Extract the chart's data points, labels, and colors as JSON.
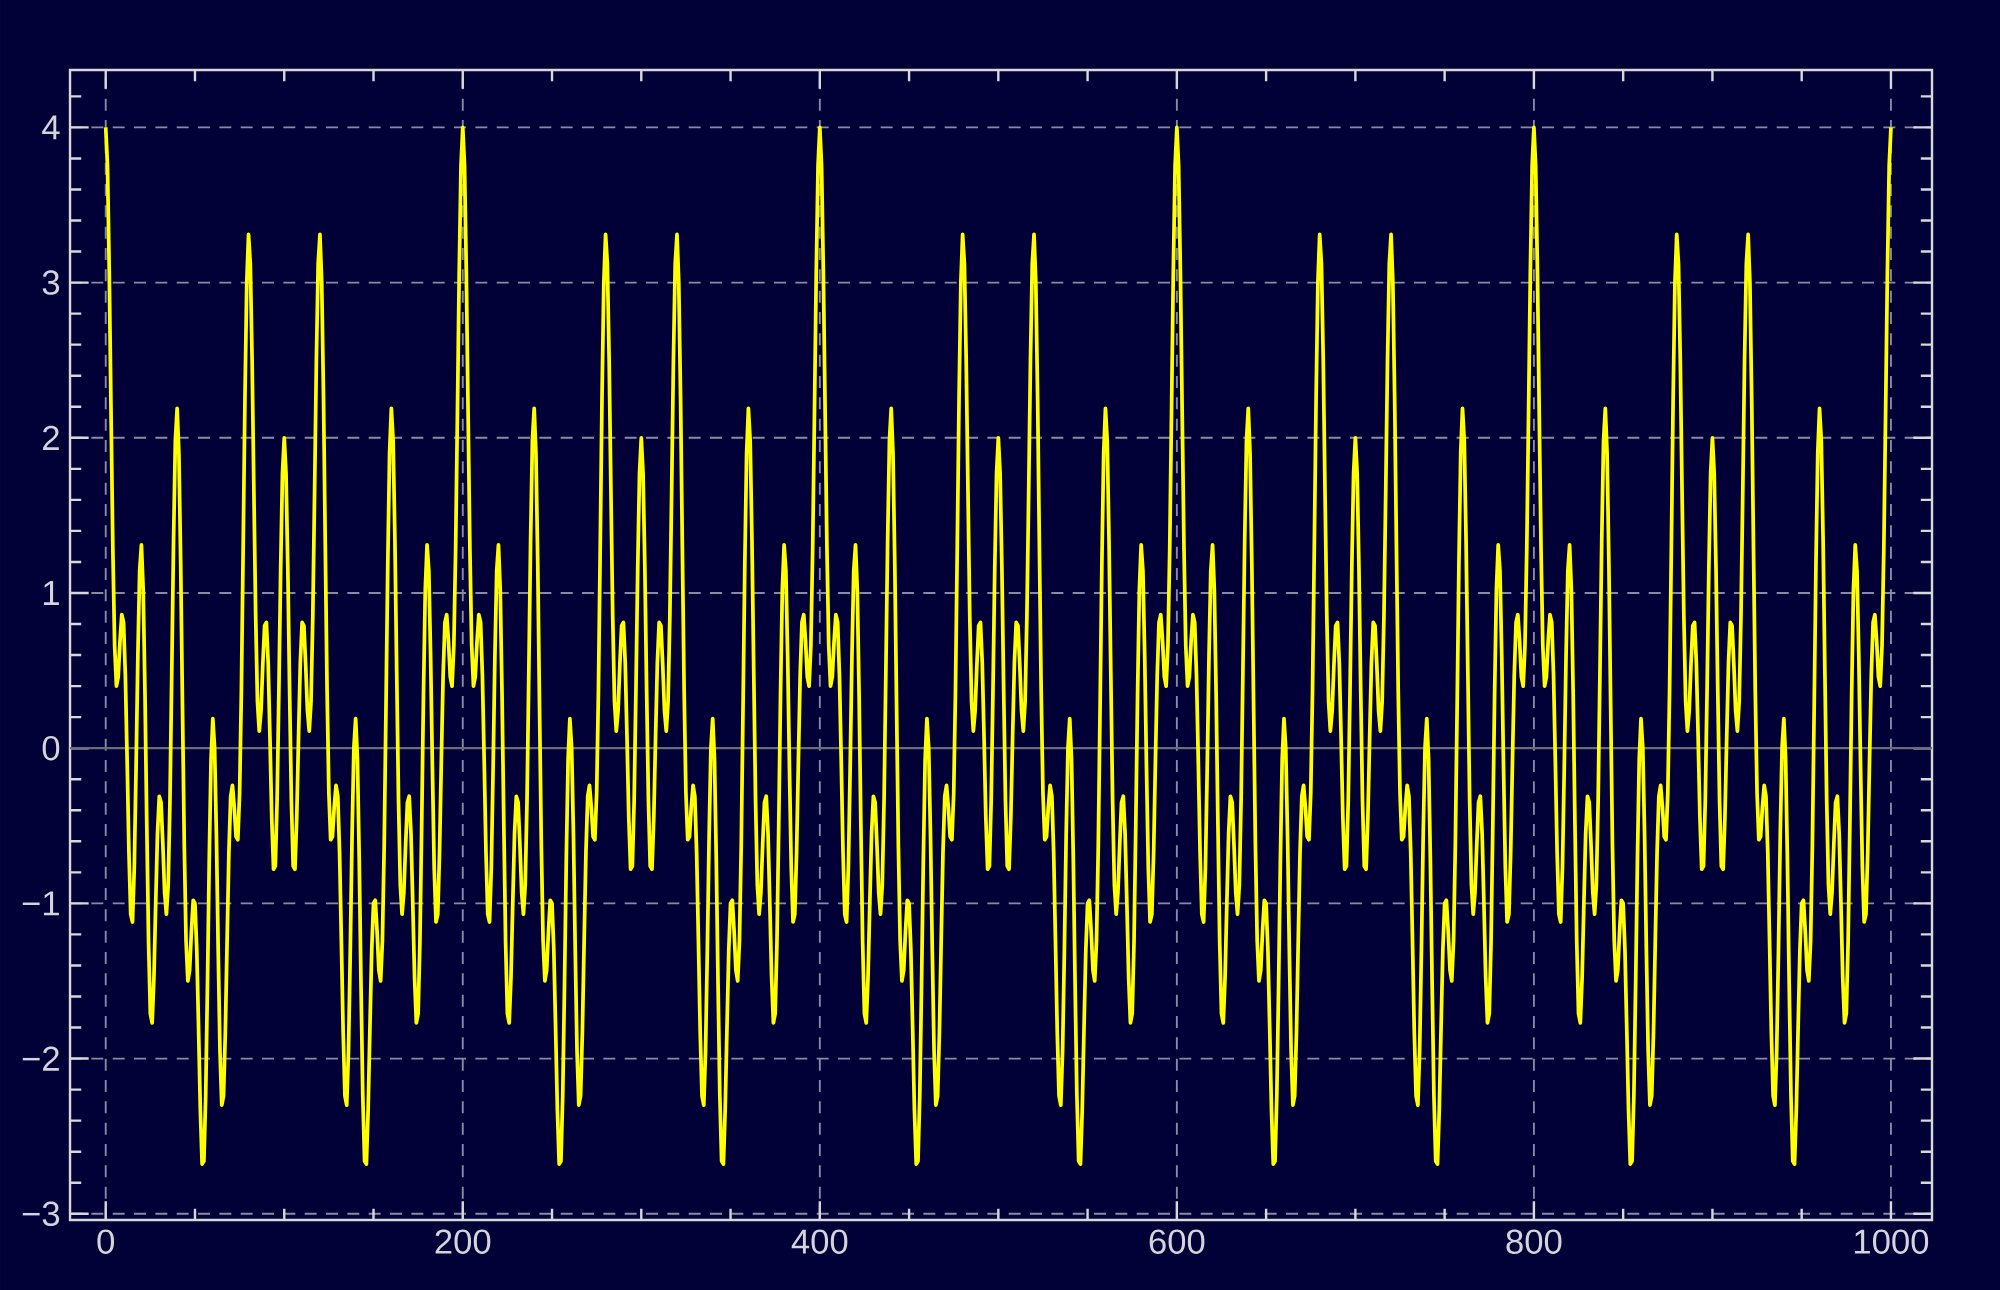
{
  "chart_data": {
    "type": "line",
    "color": "#ffff00",
    "line_style": "solid",
    "grid": true,
    "xlim": [
      -20,
      1023
    ],
    "ylim": [
      -3.04,
      4.37
    ],
    "xticks": [
      0,
      {
        "value": 50,
        "label": null
      },
      {
        "value": 100,
        "label": null
      },
      {
        "value": 150,
        "label": null
      },
      200,
      {
        "value": 250,
        "label": null
      },
      {
        "value": 300,
        "label": null
      },
      {
        "value": 350,
        "label": null
      },
      400,
      {
        "value": 450,
        "label": null
      },
      {
        "value": 500,
        "label": null
      },
      {
        "value": 550,
        "label": null
      },
      600,
      {
        "value": 650,
        "label": null
      },
      {
        "value": 700,
        "label": null
      },
      {
        "value": 750,
        "label": null
      },
      800,
      {
        "value": 850,
        "label": null
      },
      {
        "value": 900,
        "label": null
      },
      {
        "value": 950,
        "label": null
      },
      1000
    ],
    "yticks": [
      {
        "value": -3,
        "label": "−3"
      },
      {
        "value": -2.8,
        "label": null
      },
      {
        "value": -2.6,
        "label": null
      },
      {
        "value": -2.4,
        "label": null
      },
      {
        "value": -2.2,
        "label": null
      },
      {
        "value": -2,
        "label": "−2"
      },
      {
        "value": -1.8,
        "label": null
      },
      {
        "value": -1.6,
        "label": null
      },
      {
        "value": -1.4,
        "label": null
      },
      {
        "value": -1.2,
        "label": null
      },
      {
        "value": -1,
        "label": "−1"
      },
      {
        "value": -0.8,
        "label": null
      },
      {
        "value": -0.6,
        "label": null
      },
      {
        "value": -0.4,
        "label": null
      },
      {
        "value": -0.2,
        "label": null
      },
      0,
      {
        "value": 0.2,
        "label": null
      },
      {
        "value": 0.4,
        "label": null
      },
      {
        "value": 0.6,
        "label": null
      },
      {
        "value": 0.8,
        "label": null
      },
      1,
      {
        "value": 1.2,
        "label": null
      },
      {
        "value": 1.4,
        "label": null
      },
      {
        "value": 1.6,
        "label": null
      },
      {
        "value": 1.8,
        "label": null
      },
      2,
      {
        "value": 2.2,
        "label": null
      },
      {
        "value": 2.4,
        "label": null
      },
      {
        "value": 2.6,
        "label": null
      },
      {
        "value": 2.8,
        "label": null
      },
      3,
      {
        "value": 3.2,
        "label": null
      },
      {
        "value": 3.4,
        "label": null
      },
      {
        "value": 3.6,
        "label": null
      },
      {
        "value": 3.8,
        "label": null
      },
      4,
      {
        "value": 4.2,
        "label": null
      }
    ],
    "ref_lines": [
      {
        "axis": "y",
        "value": 0,
        "color": "#6b6b78",
        "line_style": "solid"
      }
    ],
    "x": [
      0,
      1,
      2,
      3,
      4,
      5,
      6,
      7,
      8,
      9,
      10,
      11,
      12,
      13,
      14,
      15,
      16,
      17,
      18,
      19,
      20,
      21,
      22,
      23,
      24,
      25,
      26,
      27,
      28,
      29,
      30,
      31,
      32,
      33,
      34,
      35,
      36,
      37,
      38,
      39,
      40,
      41,
      42,
      43,
      44,
      45,
      46,
      47,
      48,
      49,
      50,
      51,
      52,
      53,
      54,
      55,
      56,
      57,
      58,
      59,
      60,
      61,
      62,
      63,
      64,
      65,
      66,
      67,
      68,
      69,
      70,
      71,
      72,
      73,
      74,
      75,
      76,
      77,
      78,
      79,
      80,
      81,
      82,
      83,
      84,
      85,
      86,
      87,
      88,
      89,
      90,
      91,
      92,
      93,
      94,
      95,
      96,
      97,
      98,
      99,
      100,
      101,
      102,
      103,
      104,
      105,
      106,
      107,
      108,
      109,
      110,
      111,
      112,
      113,
      114,
      115,
      116,
      117,
      118,
      119,
      120,
      121,
      122,
      123,
      124,
      125,
      126,
      127,
      128,
      129,
      130,
      131,
      132,
      133,
      134,
      135,
      136,
      137,
      138,
      139,
      140,
      141,
      142,
      143,
      144,
      145,
      146,
      147,
      148,
      149,
      150,
      151,
      152,
      153,
      154,
      155,
      156,
      157,
      158,
      159,
      160,
      161,
      162,
      163,
      164,
      165,
      166,
      167,
      168,
      169,
      170,
      171,
      172,
      173,
      174,
      175,
      176,
      177,
      178,
      179,
      180,
      181,
      182,
      183,
      184,
      185,
      186,
      187,
      188,
      189,
      190,
      191,
      192,
      193,
      194,
      195,
      196,
      197,
      198,
      199,
      200,
      201,
      202,
      203,
      204,
      205,
      206,
      207,
      208,
      209,
      210,
      211,
      212,
      213,
      214,
      215,
      216,
      217,
      218,
      219,
      220,
      221,
      222,
      223,
      224,
      225,
      226,
      227,
      228,
      229,
      230,
      231,
      232,
      233,
      234,
      235,
      236,
      237,
      238,
      239,
      240,
      241,
      242,
      243,
      244,
      245,
      246,
      247,
      248,
      249,
      250,
      251,
      252,
      253,
      254,
      255,
      256,
      257,
      258,
      259,
      260,
      261,
      262,
      263,
      264,
      265,
      266,
      267,
      268,
      269,
      270,
      271,
      272,
      273,
      274,
      275,
      276,
      277,
      278,
      279,
      280,
      281,
      282,
      283,
      284,
      285,
      286,
      287,
      288,
      289,
      290,
      291,
      292,
      293,
      294,
      295,
      296,
      297,
      298,
      299,
      300,
      301,
      302,
      303,
      304,
      305,
      306,
      307,
      308,
      309,
      310,
      311,
      312,
      313,
      314,
      315,
      316,
      317,
      318,
      319,
      320,
      321,
      322,
      323,
      324,
      325,
      326,
      327,
      328,
      329,
      330,
      331,
      332,
      333,
      334,
      335,
      336,
      337,
      338,
      339,
      340,
      341,
      342,
      343,
      344,
      345,
      346,
      347,
      348,
      349,
      350,
      351,
      352,
      353,
      354,
      355,
      356,
      357,
      358,
      359,
      360,
      361,
      362,
      363,
      364,
      365,
      366,
      367,
      368,
      369,
      370,
      371,
      372,
      373,
      374,
      375,
      376,
      377,
      378,
      379,
      380,
      381,
      382,
      383,
      384,
      385,
      386,
      387,
      388,
      389,
      390,
      391,
      392,
      393,
      394,
      395,
      396,
      397,
      398,
      399,
      400,
      401,
      402,
      403,
      404,
      405,
      406,
      407,
      408,
      409,
      410,
      411,
      412,
      413,
      414,
      415,
      416,
      417,
      418,
      419,
      420,
      421,
      422,
      423,
      424,
      425,
      426,
      427,
      428,
      429,
      430,
      431,
      432,
      433,
      434,
      435,
      436,
      437,
      438,
      439,
      440,
      441,
      442,
      443,
      444,
      445,
      446,
      447,
      448,
      449,
      450,
      451,
      452,
      453,
      454,
      455,
      456,
      457,
      458,
      459,
      460,
      461,
      462,
      463,
      464,
      465,
      466,
      467,
      468,
      469,
      470,
      471,
      472,
      473,
      474,
      475,
      476,
      477,
      478,
      479,
      480,
      481,
      482,
      483,
      484,
      485,
      486,
      487,
      488,
      489,
      490,
      491,
      492,
      493,
      494,
      495,
      496,
      497,
      498,
      499,
      500,
      501,
      502,
      503,
      504,
      505,
      506,
      507,
      508,
      509,
      510,
      511,
      512,
      513,
      514,
      515,
      516,
      517,
      518,
      519,
      520,
      521,
      522,
      523,
      524,
      525,
      526,
      527,
      528,
      529,
      530,
      531,
      532,
      533,
      534,
      535,
      536,
      537,
      538,
      539,
      540,
      541,
      542,
      543,
      544,
      545,
      546,
      547,
      548,
      549,
      550,
      551,
      552,
      553,
      554,
      555,
      556,
      557,
      558,
      559,
      560,
      561,
      562,
      563,
      564,
      565,
      566,
      567,
      568,
      569,
      570,
      571,
      572,
      573,
      574,
      575,
      576,
      577,
      578,
      579,
      580,
      581,
      582,
      583,
      584,
      585,
      586,
      587,
      588,
      589,
      590,
      591,
      592,
      593,
      594,
      595,
      596,
      597,
      598,
      599,
      600,
      601,
      602,
      603,
      604,
      605,
      606,
      607,
      608,
      609,
      610,
      611,
      612,
      613,
      614,
      615,
      616,
      617,
      618,
      619,
      620,
      621,
      622,
      623,
      624,
      625,
      626,
      627,
      628,
      629,
      630,
      631,
      632,
      633,
      634,
      635,
      636,
      637,
      638,
      639,
      640,
      641,
      642,
      643,
      644,
      645,
      646,
      647,
      648,
      649,
      650,
      651,
      652,
      653,
      654,
      655,
      656,
      657,
      658,
      659,
      660,
      661,
      662,
      663,
      664,
      665,
      666,
      667,
      668,
      669,
      670,
      671,
      672,
      673,
      674,
      675,
      676,
      677,
      678,
      679,
      680,
      681,
      682,
      683,
      684,
      685,
      686,
      687,
      688,
      689,
      690,
      691,
      692,
      693,
      694,
      695,
      696,
      697,
      698,
      699,
      700,
      701,
      702,
      703,
      704,
      705,
      706,
      707,
      708,
      709,
      710,
      711,
      712,
      713,
      714,
      715,
      716,
      717,
      718,
      719,
      720,
      721,
      722,
      723,
      724,
      725,
      726,
      727,
      728,
      729,
      730,
      731,
      732,
      733,
      734,
      735,
      736,
      737,
      738,
      739,
      740,
      741,
      742,
      743,
      744,
      745,
      746,
      747,
      748,
      749,
      750,
      751,
      752,
      753,
      754,
      755,
      756,
      757,
      758,
      759,
      760,
      761,
      762,
      763,
      764,
      765,
      766,
      767,
      768,
      769,
      770,
      771,
      772,
      773,
      774,
      775,
      776,
      777,
      778,
      779,
      780,
      781,
      782,
      783,
      784,
      785,
      786,
      787,
      788,
      789,
      790,
      791,
      792,
      793,
      794,
      795,
      796,
      797,
      798,
      799,
      800,
      801,
      802,
      803,
      804,
      805,
      806,
      807,
      808,
      809,
      810,
      811,
      812,
      813,
      814,
      815,
      816,
      817,
      818,
      819,
      820,
      821,
      822,
      823,
      824,
      825,
      826,
      827,
      828,
      829,
      830,
      831,
      832,
      833,
      834,
      835,
      836,
      837,
      838,
      839,
      840,
      841,
      842,
      843,
      844,
      845,
      846,
      847,
      848,
      849,
      850,
      851,
      852,
      853,
      854,
      855,
      856,
      857,
      858,
      859,
      860,
      861,
      862,
      863,
      864,
      865,
      866,
      867,
      868,
      869,
      870,
      871,
      872,
      873,
      874,
      875,
      876,
      877,
      878,
      879,
      880,
      881,
      882,
      883,
      884,
      885,
      886,
      887,
      888,
      889,
      890,
      891,
      892,
      893,
      894,
      895,
      896,
      897,
      898,
      899,
      900,
      901,
      902,
      903,
      904,
      905,
      906,
      907,
      908,
      909,
      910,
      911,
      912,
      913,
      914,
      915,
      916,
      917,
      918,
      919,
      920,
      921,
      922,
      923,
      924,
      925,
      926,
      927,
      928,
      929,
      930,
      931,
      932,
      933,
      934,
      935,
      936,
      937,
      938,
      939,
      940,
      941,
      942,
      943,
      944,
      945,
      946,
      947,
      948,
      949,
      950,
      951,
      952,
      953,
      954,
      955,
      956,
      957,
      958,
      959,
      960,
      961,
      962,
      963,
      964,
      965,
      966,
      967,
      968,
      969,
      970,
      971,
      972,
      973,
      974,
      975,
      976,
      977,
      978,
      979,
      980,
      981,
      982,
      983,
      984,
      985,
      986,
      987,
      988,
      989,
      990,
      991,
      992,
      993,
      994,
      995,
      996,
      997,
      998,
      999,
      1000
    ],
    "values": [
      4.0,
      3.75,
      3.06,
      2.15,
      1.28,
      0.66,
      0.4,
      0.46,
      0.69,
      0.86,
      0.81,
      0.47,
      -0.08,
      -0.67,
      -1.07,
      -1.12,
      -0.77,
      -0.13,
      0.59,
      1.14,
      1.31,
      1.02,
      0.35,
      -0.49,
      -1.25,
      -1.71,
      -1.77,
      -1.48,
      -1.0,
      -0.55,
      -0.31,
      -0.35,
      -0.62,
      -0.93,
      -1.07,
      -0.88,
      -0.33,
      0.49,
      1.34,
      1.98,
      2.19,
      1.9,
      1.19,
      0.27,
      -0.62,
      -1.24,
      -1.5,
      -1.43,
      -1.18,
      -0.98,
      -1.0,
      -1.3,
      -1.8,
      -2.33,
      -2.68,
      -2.66,
      -2.24,
      -1.52,
      -0.71,
      -0.07,
      0.19,
      0.0,
      -0.56,
      -1.3,
      -1.95,
      -2.3,
      -2.24,
      -1.83,
      -1.24,
      -0.67,
      -0.31,
      -0.24,
      -0.38,
      -0.57,
      -0.59,
      -0.29,
      0.37,
      1.3,
      2.26,
      3.0,
      3.31,
      3.12,
      2.5,
      1.65,
      0.85,
      0.3,
      0.11,
      0.24,
      0.54,
      0.79,
      0.81,
      0.55,
      0.07,
      -0.45,
      -0.78,
      -0.76,
      -0.34,
      0.37,
      1.16,
      1.77,
      2.0,
      1.77,
      1.16,
      0.37,
      -0.34,
      -0.76,
      -0.78,
      -0.45,
      0.07,
      0.55,
      0.81,
      0.79,
      0.54,
      0.24,
      0.11,
      0.3,
      0.85,
      1.65,
      2.5,
      3.12,
      3.31,
      3.0,
      2.26,
      1.3,
      0.37,
      -0.29,
      -0.59,
      -0.57,
      -0.38,
      -0.24,
      -0.31,
      -0.67,
      -1.24,
      -1.83,
      -2.24,
      -2.3,
      -1.95,
      -1.3,
      -0.56,
      0.0,
      0.19,
      -0.07,
      -0.71,
      -1.52,
      -2.24,
      -2.66,
      -2.68,
      -2.33,
      -1.8,
      -1.3,
      -1.0,
      -0.98,
      -1.18,
      -1.43,
      -1.5,
      -1.24,
      -0.62,
      0.27,
      1.19,
      1.9,
      2.19,
      1.98,
      1.34,
      0.49,
      -0.33,
      -0.88,
      -1.07,
      -0.93,
      -0.62,
      -0.35,
      -0.31,
      -0.55,
      -1.0,
      -1.48,
      -1.77,
      -1.71,
      -1.25,
      -0.49,
      0.35,
      1.02,
      1.31,
      1.14,
      0.59,
      -0.13,
      -0.77,
      -1.12,
      -1.07,
      -0.67,
      -0.08,
      0.47,
      0.81,
      0.86,
      0.69,
      0.46,
      0.4,
      0.66,
      1.28,
      2.15,
      3.06,
      3.75,
      4.0,
      3.75,
      3.06,
      2.15,
      1.28,
      0.66,
      0.4,
      0.46,
      0.69,
      0.86,
      0.81,
      0.47,
      -0.08,
      -0.67,
      -1.07,
      -1.12,
      -0.77,
      -0.13,
      0.59,
      1.14,
      1.31,
      1.02,
      0.35,
      -0.49,
      -1.25,
      -1.71,
      -1.77,
      -1.48,
      -1.0,
      -0.55,
      -0.31,
      -0.35,
      -0.62,
      -0.93,
      -1.07,
      -0.88,
      -0.33,
      0.49,
      1.34,
      1.98,
      2.19,
      1.9,
      1.19,
      0.27,
      -0.62,
      -1.24,
      -1.5,
      -1.43,
      -1.18,
      -0.98,
      -1.0,
      -1.3,
      -1.8,
      -2.33,
      -2.68,
      -2.66,
      -2.24,
      -1.52,
      -0.71,
      -0.07,
      0.19,
      0.0,
      -0.56,
      -1.3,
      -1.95,
      -2.3,
      -2.24,
      -1.83,
      -1.24,
      -0.67,
      -0.31,
      -0.24,
      -0.38,
      -0.57,
      -0.59,
      -0.29,
      0.37,
      1.3,
      2.26,
      3.0,
      3.31,
      3.12,
      2.5,
      1.65,
      0.85,
      0.3,
      0.11,
      0.24,
      0.54,
      0.79,
      0.81,
      0.55,
      0.07,
      -0.45,
      -0.78,
      -0.76,
      -0.34,
      0.37,
      1.16,
      1.77,
      2.0,
      1.77,
      1.16,
      0.37,
      -0.34,
      -0.76,
      -0.78,
      -0.45,
      0.07,
      0.55,
      0.81,
      0.79,
      0.54,
      0.24,
      0.11,
      0.3,
      0.85,
      1.65,
      2.5,
      3.12,
      3.31,
      3.0,
      2.26,
      1.3,
      0.37,
      -0.29,
      -0.59,
      -0.57,
      -0.38,
      -0.24,
      -0.31,
      -0.67,
      -1.24,
      -1.83,
      -2.24,
      -2.3,
      -1.95,
      -1.3,
      -0.56,
      0.0,
      0.19,
      -0.07,
      -0.71,
      -1.52,
      -2.24,
      -2.66,
      -2.68,
      -2.33,
      -1.8,
      -1.3,
      -1.0,
      -0.98,
      -1.18,
      -1.43,
      -1.5,
      -1.24,
      -0.62,
      0.27,
      1.19,
      1.9,
      2.19,
      1.98,
      1.34,
      0.49,
      -0.33,
      -0.88,
      -1.07,
      -0.93,
      -0.62,
      -0.35,
      -0.31,
      -0.55,
      -1.0,
      -1.48,
      -1.77,
      -1.71,
      -1.25,
      -0.49,
      0.35,
      1.02,
      1.31,
      1.14,
      0.59,
      -0.13,
      -0.77,
      -1.12,
      -1.07,
      -0.67,
      -0.08,
      0.47,
      0.81,
      0.86,
      0.69,
      0.46,
      0.4,
      0.66,
      1.28,
      2.15,
      3.06,
      3.75,
      4.0,
      3.75,
      3.06,
      2.15,
      1.28,
      0.66,
      0.4,
      0.46,
      0.69,
      0.86,
      0.81,
      0.47,
      -0.08,
      -0.67,
      -1.07,
      -1.12,
      -0.77,
      -0.13,
      0.59,
      1.14,
      1.31,
      1.02,
      0.35,
      -0.49,
      -1.25,
      -1.71,
      -1.77,
      -1.48,
      -1.0,
      -0.55,
      -0.31,
      -0.35,
      -0.62,
      -0.93,
      -1.07,
      -0.88,
      -0.33,
      0.49,
      1.34,
      1.98,
      2.19,
      1.9,
      1.19,
      0.27,
      -0.62,
      -1.24,
      -1.5,
      -1.43,
      -1.18,
      -0.98,
      -1.0,
      -1.3,
      -1.8,
      -2.33,
      -2.68,
      -2.66,
      -2.24,
      -1.52,
      -0.71,
      -0.07,
      0.19,
      0.0,
      -0.56,
      -1.3,
      -1.95,
      -2.3,
      -2.24,
      -1.83,
      -1.24,
      -0.67,
      -0.31,
      -0.24,
      -0.38,
      -0.57,
      -0.59,
      -0.29,
      0.37,
      1.3,
      2.26,
      3.0,
      3.31,
      3.12,
      2.5,
      1.65,
      0.85,
      0.3,
      0.11,
      0.24,
      0.54,
      0.79,
      0.81,
      0.55,
      0.07,
      -0.45,
      -0.78,
      -0.76,
      -0.34,
      0.37,
      1.16,
      1.77,
      2.0,
      1.77,
      1.16,
      0.37,
      -0.34,
      -0.76,
      -0.78,
      -0.45,
      0.07,
      0.55,
      0.81,
      0.79,
      0.54,
      0.24,
      0.11,
      0.3,
      0.85,
      1.65,
      2.5,
      3.12,
      3.31,
      3.0,
      2.26,
      1.3,
      0.37,
      -0.29,
      -0.59,
      -0.57,
      -0.38,
      -0.24,
      -0.31,
      -0.67,
      -1.24,
      -1.83,
      -2.24,
      -2.3,
      -1.95,
      -1.3,
      -0.56,
      0.0,
      0.19,
      -0.07,
      -0.71,
      -1.52,
      -2.24,
      -2.66,
      -2.68,
      -2.33,
      -1.8,
      -1.3,
      -1.0,
      -0.98,
      -1.18,
      -1.43,
      -1.5,
      -1.24,
      -0.62,
      0.27,
      1.19,
      1.9,
      2.19,
      1.98,
      1.34,
      0.49,
      -0.33,
      -0.88,
      -1.07,
      -0.93,
      -0.62,
      -0.35,
      -0.31,
      -0.55,
      -1.0,
      -1.48,
      -1.77,
      -1.71,
      -1.25,
      -0.49,
      0.35,
      1.02,
      1.31,
      1.14,
      0.59,
      -0.13,
      -0.77,
      -1.12,
      -1.07,
      -0.67,
      -0.08,
      0.47,
      0.81,
      0.86,
      0.69,
      0.46,
      0.4,
      0.66,
      1.28,
      2.15,
      3.06,
      3.75,
      4.0,
      3.75,
      3.06,
      2.15,
      1.28,
      0.66,
      0.4,
      0.46,
      0.69,
      0.86,
      0.81,
      0.47,
      -0.08,
      -0.67,
      -1.07,
      -1.12,
      -0.77,
      -0.13,
      0.59,
      1.14,
      1.31,
      1.02,
      0.35,
      -0.49,
      -1.25,
      -1.71,
      -1.77,
      -1.48,
      -1.0,
      -0.55,
      -0.31,
      -0.35,
      -0.62,
      -0.93,
      -1.07,
      -0.88,
      -0.33,
      0.49,
      1.34,
      1.98,
      2.19,
      1.9,
      1.19,
      0.27,
      -0.62,
      -1.24,
      -1.5,
      -1.43,
      -1.18,
      -0.98,
      -1.0,
      -1.3,
      -1.8,
      -2.33,
      -2.68,
      -2.66,
      -2.24,
      -1.52,
      -0.71,
      -0.07,
      0.19,
      0.0,
      -0.56,
      -1.3,
      -1.95,
      -2.3,
      -2.24,
      -1.83,
      -1.24,
      -0.67,
      -0.31,
      -0.24,
      -0.38,
      -0.57,
      -0.59,
      -0.29,
      0.37,
      1.3,
      2.26,
      3.0,
      3.31,
      3.12,
      2.5,
      1.65,
      0.85,
      0.3,
      0.11,
      0.24,
      0.54,
      0.79,
      0.81,
      0.55,
      0.07,
      -0.45,
      -0.78,
      -0.76,
      -0.34,
      0.37,
      1.16,
      1.77,
      2.0,
      1.77,
      1.16,
      0.37,
      -0.34,
      -0.76,
      -0.78,
      -0.45,
      0.07,
      0.55,
      0.81,
      0.79,
      0.54,
      0.24,
      0.11,
      0.3,
      0.85,
      1.65,
      2.5,
      3.12,
      3.31,
      3.0,
      2.26,
      1.3,
      0.37,
      -0.29,
      -0.59,
      -0.57,
      -0.38,
      -0.24,
      -0.31,
      -0.67,
      -1.24,
      -1.83,
      -2.24,
      -2.3,
      -1.95,
      -1.3,
      -0.56,
      0.0,
      0.19,
      -0.07,
      -0.71,
      -1.52,
      -2.24,
      -2.66,
      -2.68,
      -2.33,
      -1.8,
      -1.3,
      -1.0,
      -0.98,
      -1.18,
      -1.43,
      -1.5,
      -1.24,
      -0.62,
      0.27,
      1.19,
      1.9,
      2.19,
      1.98,
      1.34,
      0.49,
      -0.33,
      -0.88,
      -1.07,
      -0.93,
      -0.62,
      -0.35,
      -0.31,
      -0.55,
      -1.0,
      -1.48,
      -1.77,
      -1.71,
      -1.25,
      -0.49,
      0.35,
      1.02,
      1.31,
      1.14,
      0.59,
      -0.13,
      -0.77,
      -1.12,
      -1.07,
      -0.67,
      -0.08,
      0.47,
      0.81,
      0.86,
      0.69,
      0.46,
      0.4,
      0.66,
      1.28,
      2.15,
      3.06,
      3.75,
      4.0,
      3.75,
      3.06,
      2.15,
      1.28,
      0.66,
      0.4,
      0.46,
      0.69,
      0.86,
      0.81,
      0.47,
      -0.08,
      -0.67,
      -1.07,
      -1.12,
      -0.77,
      -0.13,
      0.59,
      1.14,
      1.31,
      1.02,
      0.35,
      -0.49,
      -1.25,
      -1.71,
      -1.77,
      -1.48,
      -1.0,
      -0.55,
      -0.31,
      -0.35,
      -0.62,
      -0.93,
      -1.07,
      -0.88,
      -0.33,
      0.49,
      1.34,
      1.98,
      2.19,
      1.9,
      1.19,
      0.27,
      -0.62,
      -1.24,
      -1.5,
      -1.43,
      -1.18,
      -0.98,
      -1.0,
      -1.3,
      -1.8,
      -2.33,
      -2.68,
      -2.66,
      -2.24,
      -1.52,
      -0.71,
      -0.07,
      0.19,
      0.0,
      -0.56,
      -1.3,
      -1.95,
      -2.3,
      -2.24,
      -1.83,
      -1.24,
      -0.67,
      -0.31,
      -0.24,
      -0.38,
      -0.57,
      -0.59,
      -0.29,
      0.37,
      1.3,
      2.26,
      3.0,
      3.31,
      3.12,
      2.5,
      1.65,
      0.85,
      0.3,
      0.11,
      0.24,
      0.54,
      0.79,
      0.81,
      0.55,
      0.07,
      -0.45,
      -0.78,
      -0.76,
      -0.34,
      0.37,
      1.16,
      1.77,
      2.0,
      1.77,
      1.16,
      0.37,
      -0.34,
      -0.76,
      -0.78,
      -0.45,
      0.07,
      0.55,
      0.81,
      0.79,
      0.54,
      0.24,
      0.11,
      0.3,
      0.85,
      1.65,
      2.5,
      3.12,
      3.31,
      3.0,
      2.26,
      1.3,
      0.37,
      -0.29,
      -0.59,
      -0.57,
      -0.38,
      -0.24,
      -0.31,
      -0.67,
      -1.24,
      -1.83,
      -2.24,
      -2.3,
      -1.95,
      -1.3,
      -0.56,
      0.0,
      0.19,
      -0.07,
      -0.71,
      -1.52,
      -2.24,
      -2.66,
      -2.68,
      -2.33,
      -1.8,
      -1.3,
      -1.0,
      -0.98,
      -1.18,
      -1.43,
      -1.5,
      -1.24,
      -0.62,
      0.27,
      1.19,
      1.9,
      2.19,
      1.98,
      1.34,
      0.49,
      -0.33,
      -0.88,
      -1.07,
      -0.93,
      -0.62,
      -0.35,
      -0.31,
      -0.55,
      -1.0,
      -1.48,
      -1.77,
      -1.71,
      -1.25,
      -0.49,
      0.35,
      1.02,
      1.31,
      1.14,
      0.59,
      -0.13,
      -0.77,
      -1.12,
      -1.07,
      -0.67,
      -0.08,
      0.47,
      0.81,
      0.86,
      0.69,
      0.46,
      0.4,
      0.66,
      1.28,
      2.15,
      3.06,
      3.75,
      4.0
    ]
  }
}
